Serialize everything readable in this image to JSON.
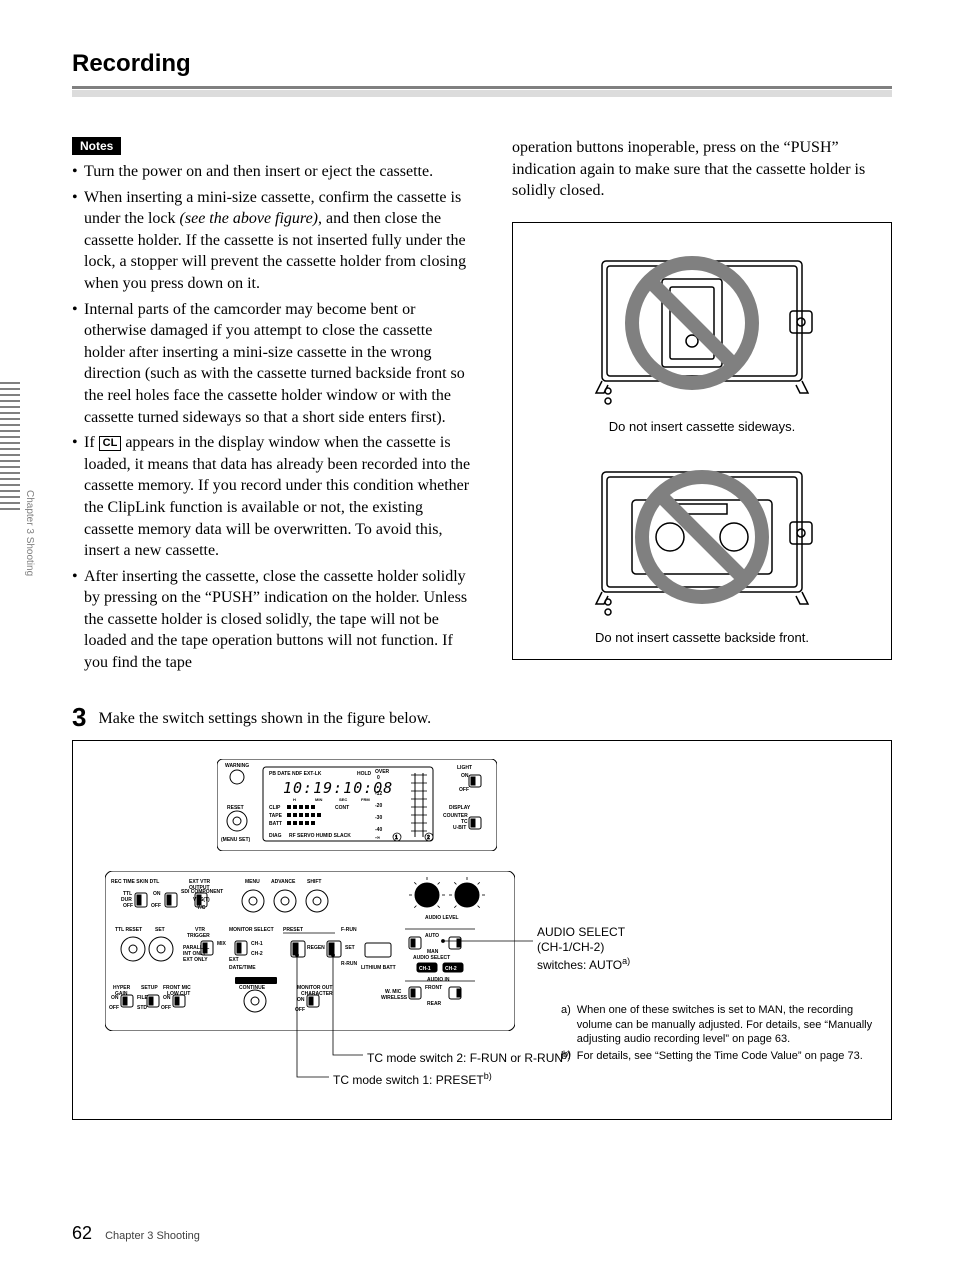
{
  "page": {
    "title": "Recording",
    "number": "62",
    "chapter_label": "Chapter 3   Shooting",
    "side_label": "Chapter 3  Shooting"
  },
  "notes": {
    "badge": "Notes",
    "items": [
      "Turn the power on and then insert or eject the cassette.",
      "When inserting a mini-size cassette, confirm the cassette is under the lock *(see the above figure)*, and then close the cassette holder. If the cassette is not inserted fully under the lock, a stopper will prevent the cassette holder from closing when you press down on it.",
      "Internal parts of the camcorder may become bent or otherwise damaged if you attempt to close the cassette holder after inserting a mini-size cassette in the wrong direction (such as with the cassette turned backside front so the reel holes face the cassette holder window or with the cassette turned sideways so that a short side enters first).",
      "If |CL| appears in the display window when the cassette is loaded, it means that data has already been recorded into the cassette memory.  If you record under this condition whether the ClipLink function is available or not, the existing cassette memory data will be overwritten.  To avoid this, insert a new cassette.",
      "After inserting the cassette, close the cassette holder solidly by pressing on the “PUSH” indication on the holder.  Unless the cassette holder is closed solidly, the tape will not be loaded and the tape operation buttons will not function.  If you find the tape"
    ]
  },
  "right_col": {
    "lead": "operation buttons inoperable, press on the “PUSH” indication again to make sure that the cassette holder is solidly closed.",
    "warn1": "Do not insert cassette sideways.",
    "warn2": "Do not insert cassette backside front."
  },
  "step3": {
    "num": "3",
    "text": "Make the switch settings shown in the figure below."
  },
  "figure": {
    "audio_select_title": "AUDIO SELECT",
    "audio_select_sub": "(CH-1/CH-2)",
    "audio_select_line": "switches: AUTO",
    "audio_select_sup": "a)",
    "tc2": "TC mode switch 2: F-RUN or R-RUN",
    "tc2_sup": "b)",
    "tc1": "TC mode switch 1: PRESET",
    "tc1_sup": "b)",
    "note_a_key": "a)",
    "note_a": "When one of these switches is set to MAN, the recording volume can be manually adjusted. For details, see “Manually adjusting audio recording level” on page 63.",
    "note_b_key": "b)",
    "note_b": "For details, see “Setting the Time Code Value” on page 73.",
    "panel_labels": {
      "warning": "WARNING",
      "pbdate": "PB DATE NDF EXT-LK",
      "hold": "HOLD",
      "light": "LIGHT",
      "reset": "RESET",
      "menuset": "(MENU SET)",
      "clip": "CLIP",
      "tape": "TAPE",
      "batt": "BATT",
      "cont": "CONT",
      "display": "DISPLAY",
      "counter": "COUNTER",
      "tc": "TC",
      "ubit": "U-BIT",
      "diag": "DIAG",
      "rfservo": "RF   SERVO HUMID  SLACK",
      "rectime": "REC TIME  SKIN  DTL",
      "extvtr": "EXT VTR",
      "output": "OUTPUT",
      "menu": "MENU",
      "advance": "ADVANCE",
      "shift": "SHIFT",
      "audiolevel": "AUDIO LEVEL",
      "ttlreset": "TTL RESET",
      "set": "SET",
      "monsel": "MONITOR SELECT",
      "vtrtrig": "VTR\nTRIGGER",
      "preset": "PRESET",
      "frun": "F-RUN",
      "rrun": "R-RUN",
      "datetime": "DATE/TIME",
      "lithium": "LITHIUM BATT",
      "audioselect": "AUDIO SELECT",
      "audioin": "AUDIO IN",
      "ch1": "CH-1",
      "ch2": "CH-2",
      "auto": "AUTO",
      "man": "MAN",
      "front": "FRONT",
      "rear": "REAR",
      "wireless": "WIRELESS",
      "wmic": "W. MIC",
      "cliplink": "ClipLink\nCONTINUE",
      "monout": "MONITOR OUT\nCHARACTER",
      "hyper": "HYPER\nGAIN",
      "setup": "SETUP",
      "frontmic": "FRONT MIC\nLOW CUT",
      "regen": "REGEN",
      "on": "ON",
      "off": "OFF"
    }
  },
  "colors": {
    "prohibit": "#808080",
    "rule_dark": "#808080",
    "rule_light": "#dcdcdc"
  }
}
